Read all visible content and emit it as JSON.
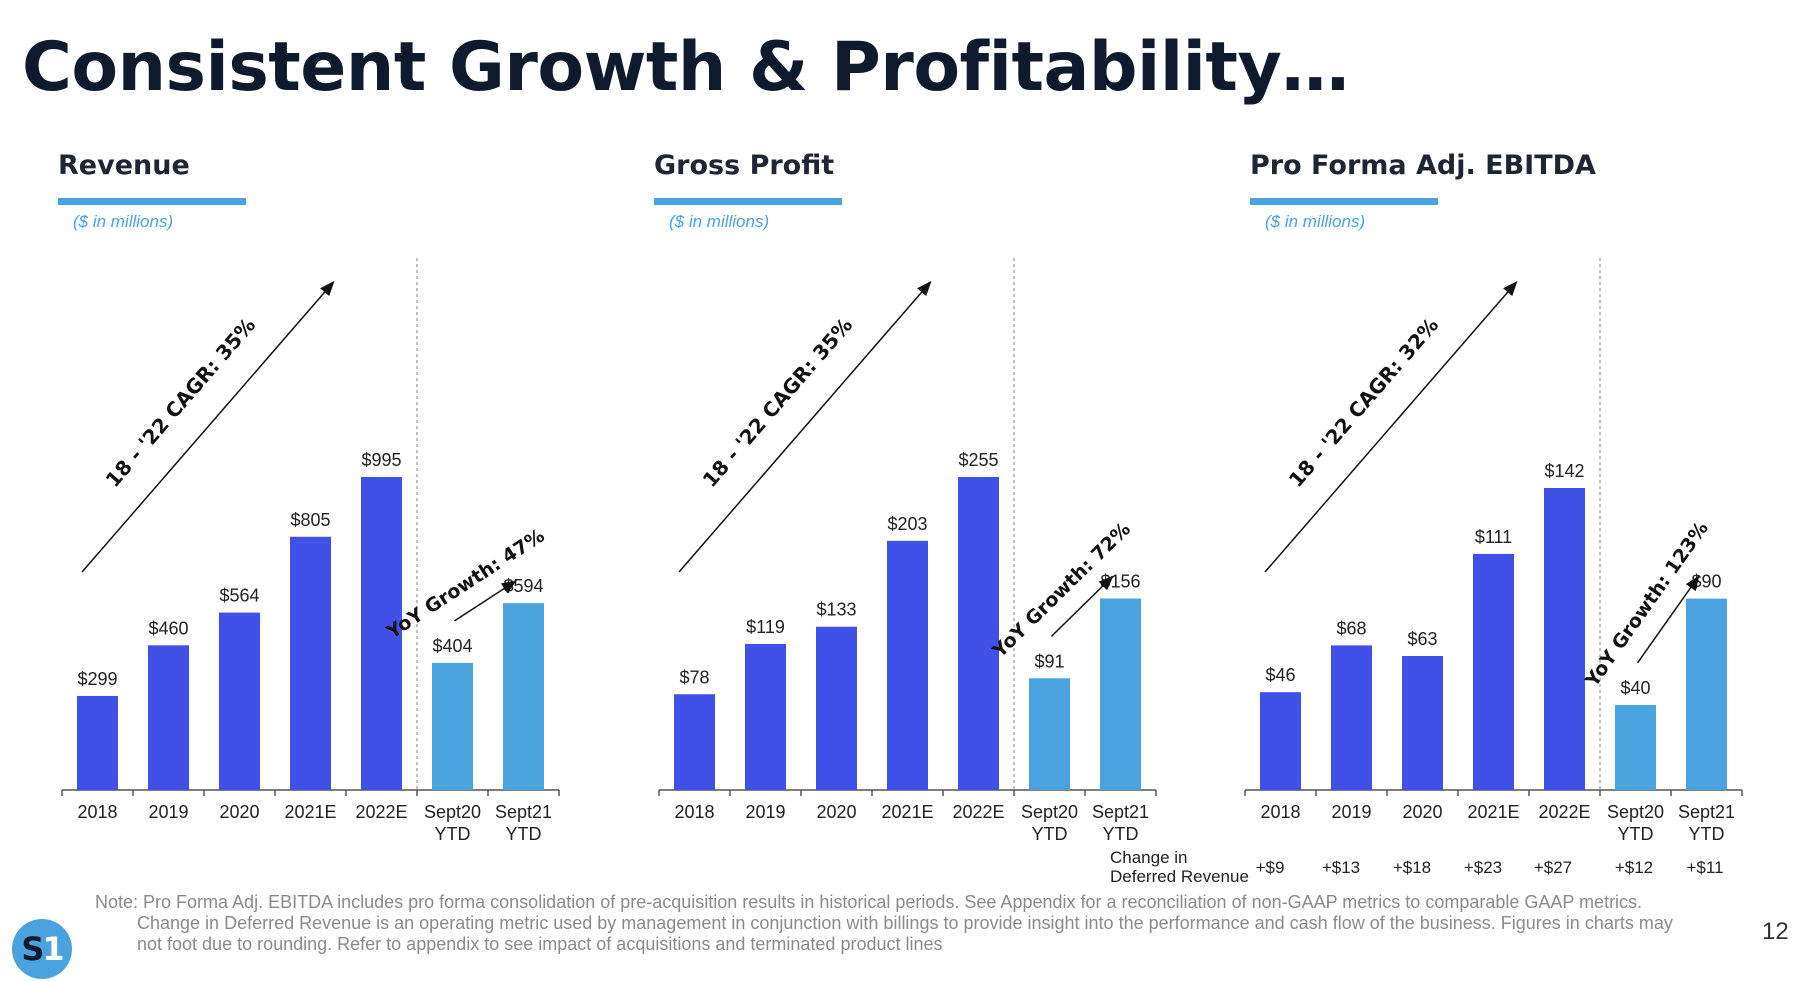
{
  "title": "Consistent Growth & Profitability…",
  "unit_note": "($ in millions)",
  "page_number": "12",
  "logo": {
    "text_s": "S",
    "text_1": "1"
  },
  "colors": {
    "historical": "#4150e6",
    "ytd": "#4aa3de",
    "accent": "#4aa3de"
  },
  "deferred_revenue": {
    "label_line1": "Change in",
    "label_line2": "Deferred Revenue",
    "values": [
      "+$9",
      "+$13",
      "+$18",
      "+$23",
      "+$27",
      "+$12",
      "+$11"
    ]
  },
  "note": "Note: Pro Forma Adj. EBITDA includes pro forma consolidation of pre-acquisition results in historical periods. See Appendix for a reconciliation of non-GAAP metrics to comparable GAAP metrics. Change in Deferred Revenue is an operating metric used by management in conjunction with billings to provide insight into the performance and cash flow of the business. Figures in charts may not foot due to rounding. Refer to appendix to see impact of acquisitions and terminated product lines",
  "chart_data": [
    {
      "type": "bar",
      "title": "Revenue",
      "subtitle": "($ in millions)",
      "categories": [
        "2018",
        "2019",
        "2020",
        "2021E",
        "2022E",
        "Sept20\nYTD",
        "Sept21\nYTD"
      ],
      "values": [
        299,
        460,
        564,
        805,
        995,
        404,
        594
      ],
      "data_labels": [
        "$299",
        "$460",
        "$564",
        "$805",
        "$995",
        "$404",
        "$594"
      ],
      "bar_colors": [
        "historical",
        "historical",
        "historical",
        "historical",
        "historical",
        "ytd",
        "ytd"
      ],
      "annotations": {
        "cagr": "18 - '22 CAGR: 35%",
        "yoy": "YoY Growth: 47%"
      },
      "ylim": [
        0,
        1000
      ]
    },
    {
      "type": "bar",
      "title": "Gross Profit",
      "subtitle": "($ in millions)",
      "categories": [
        "2018",
        "2019",
        "2020",
        "2021E",
        "2022E",
        "Sept20\nYTD",
        "Sept21\nYTD"
      ],
      "values": [
        78,
        119,
        133,
        203,
        255,
        91,
        156
      ],
      "data_labels": [
        "$78",
        "$119",
        "$133",
        "$203",
        "$255",
        "$91",
        "$156"
      ],
      "bar_colors": [
        "historical",
        "historical",
        "historical",
        "historical",
        "historical",
        "ytd",
        "ytd"
      ],
      "annotations": {
        "cagr": "18 - '22 CAGR: 35%",
        "yoy": "YoY Growth: 72%"
      },
      "ylim": [
        0,
        256
      ]
    },
    {
      "type": "bar",
      "title": "Pro Forma Adj. EBITDA",
      "subtitle": "($ in millions)",
      "categories": [
        "2018",
        "2019",
        "2020",
        "2021E",
        "2022E",
        "Sept20\nYTD",
        "Sept21\nYTD"
      ],
      "values": [
        46,
        68,
        63,
        111,
        142,
        40,
        90
      ],
      "data_labels": [
        "$46",
        "$68",
        "$63",
        "$111",
        "$142",
        "$40",
        "$90"
      ],
      "bar_colors": [
        "historical",
        "historical",
        "historical",
        "historical",
        "historical",
        "ytd",
        "ytd"
      ],
      "annotations": {
        "cagr": "18 - '22 CAGR: 32%",
        "yoy": "YoY Growth: 123%"
      },
      "ylim": [
        0,
        142
      ]
    }
  ]
}
